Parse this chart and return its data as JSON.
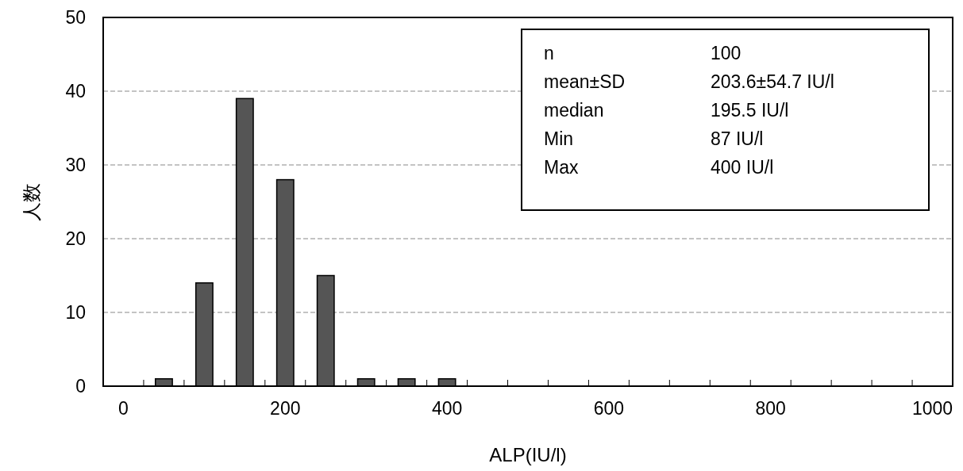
{
  "chart_data": {
    "type": "bar",
    "xlabel": "ALP(IU/l)",
    "ylabel": "人数",
    "x": [
      50,
      100,
      150,
      200,
      250,
      300,
      350,
      400
    ],
    "values": [
      1,
      14,
      39,
      28,
      15,
      1,
      1,
      1
    ],
    "color": "#555555",
    "xlim": [
      -25,
      1025
    ],
    "xticks": [
      0,
      {
        "value": 25,
        "label": null
      },
      {
        "value": 75,
        "label": null
      },
      {
        "value": 125,
        "label": null
      },
      {
        "value": 175,
        "label": null
      },
      200,
      {
        "value": 225,
        "label": null
      },
      {
        "value": 275,
        "label": null
      },
      {
        "value": 325,
        "label": null
      },
      {
        "value": 375,
        "label": null
      },
      400,
      {
        "value": 425,
        "label": null
      },
      {
        "value": 475,
        "label": null
      },
      {
        "value": 525,
        "label": null
      },
      {
        "value": 575,
        "label": null
      },
      600,
      {
        "value": 625,
        "label": null
      },
      {
        "value": 675,
        "label": null
      },
      {
        "value": 725,
        "label": null
      },
      {
        "value": 775,
        "label": null
      },
      800,
      {
        "value": 825,
        "label": null
      },
      {
        "value": 875,
        "label": null
      },
      {
        "value": 925,
        "label": null
      },
      {
        "value": 975,
        "label": null
      },
      1000
    ],
    "ylim": [
      0,
      50
    ],
    "yticks": [
      0,
      10,
      20,
      30,
      40,
      50
    ],
    "grid": "y",
    "annotations": [
      "n",
      "100",
      "mean±SD",
      "203.6±54.7 IU/l",
      "median",
      "195.5 IU/l",
      "Min",
      "87 IU/l",
      "Max",
      "400 IU/l"
    ]
  }
}
